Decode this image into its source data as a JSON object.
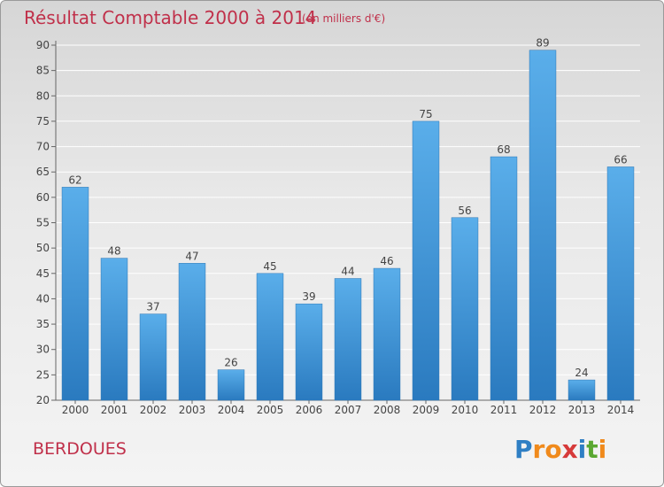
{
  "chart_data": {
    "type": "bar",
    "title": "Résultat Comptable 2000 à 2014",
    "subtitle": "(en milliers d'€)",
    "categories": [
      "2000",
      "2001",
      "2002",
      "2003",
      "2004",
      "2005",
      "2006",
      "2007",
      "2008",
      "2009",
      "2010",
      "2011",
      "2012",
      "2013",
      "2014"
    ],
    "values": [
      62,
      48,
      37,
      47,
      26,
      45,
      39,
      44,
      46,
      75,
      56,
      68,
      89,
      24,
      66
    ],
    "ylim": [
      20,
      90
    ],
    "yticks": [
      20,
      25,
      30,
      35,
      40,
      45,
      50,
      55,
      60,
      65,
      70,
      75,
      80,
      85,
      90
    ],
    "grid": true,
    "xlabel": "",
    "ylabel": "",
    "bar_color": "#3a8fd6"
  },
  "location": "BERDOUES",
  "brand": {
    "letters": [
      "P",
      "r",
      "o",
      "x",
      "i",
      "t",
      "i"
    ],
    "colors": [
      "#2f7fc4",
      "#f08a1c",
      "#f08a1c",
      "#d63a3a",
      "#2f7fc4",
      "#5aa832",
      "#f08a1c"
    ]
  }
}
